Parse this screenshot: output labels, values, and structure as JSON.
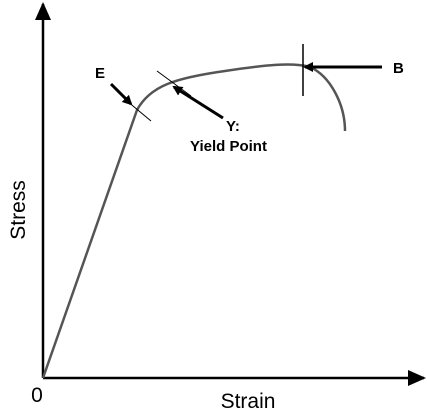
{
  "labels": {
    "elastic_limit": "E",
    "yield_prefix": "Y:",
    "yield_point": "Yield Point",
    "breaking_point": "B"
  },
  "axes": {
    "y_label": "Stress",
    "x_label": "Strain",
    "origin": "0"
  }
}
